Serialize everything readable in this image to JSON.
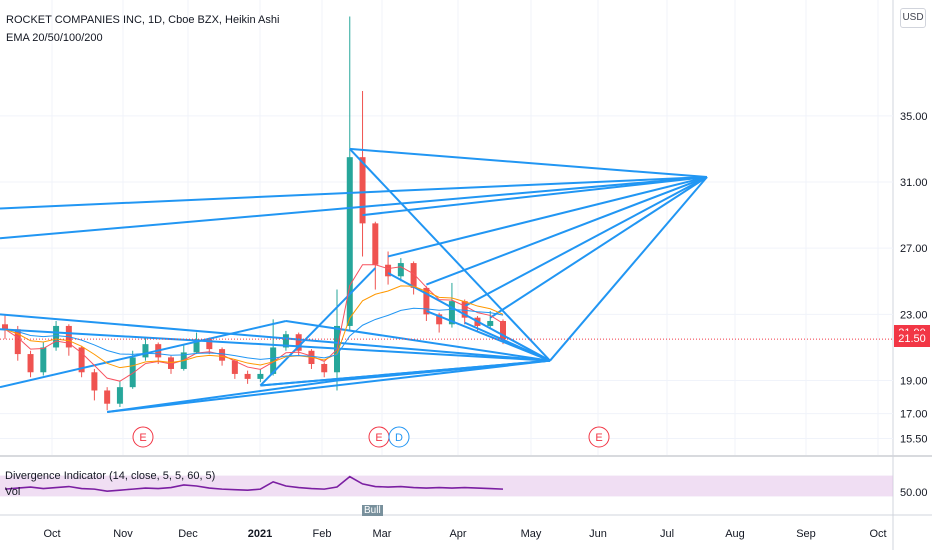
{
  "header": {
    "title": "ROCKET COMPANIES INC, 1D, Cboe BZX, Heikin Ashi",
    "indicator": "EMA 20/50/100/200"
  },
  "currency_button": "USD",
  "price_tags": [
    {
      "label": "21.90",
      "value": 21.9,
      "color": "#f23645"
    },
    {
      "label": "21.50",
      "value": 21.5,
      "color": "#f23645"
    }
  ],
  "oscillator": {
    "label": "Divergence Indicator (14, close, 5, 5, 60, 5)",
    "vol_label": "Vol",
    "bull_tag": "Bull",
    "band_color": "#e1bee7",
    "line_color": "#7b1fa2",
    "tick": "50.00"
  },
  "earnings_markers": [
    {
      "label": "E",
      "x_month": "Nov"
    },
    {
      "label": "E",
      "x_month": "Mar"
    },
    {
      "label": "D",
      "x_month": "Mar"
    },
    {
      "label": "E",
      "x_month": "Jun"
    }
  ],
  "chart_data": {
    "type": "candlestick",
    "title": "ROCKET COMPANIES INC, 1D, Cboe BZX, Heikin Ashi",
    "y_ticks": [
      "35.00",
      "31.00",
      "27.00",
      "23.00",
      "19.00",
      "17.00",
      "15.50"
    ],
    "y_tick_values": [
      35,
      31,
      27,
      23,
      19,
      17,
      15.5
    ],
    "x_ticks": [
      "Oct",
      "Nov",
      "Dec",
      "2021",
      "Feb",
      "Mar",
      "Apr",
      "May",
      "Jun",
      "Jul",
      "Aug",
      "Sep",
      "Oct"
    ],
    "colors": {
      "up": "#26a69a",
      "down": "#ef5350",
      "trend": "#2196f3",
      "ema": "#f7525f"
    },
    "series_price": [
      {
        "x": 0,
        "o": 22.4,
        "c": 22.1,
        "h": 23.0,
        "l": 21.5
      },
      {
        "x": 1,
        "o": 22.1,
        "c": 20.6,
        "h": 22.3,
        "l": 20.2
      },
      {
        "x": 2,
        "o": 20.6,
        "c": 19.5,
        "h": 20.8,
        "l": 19.2
      },
      {
        "x": 3,
        "o": 19.5,
        "c": 21.0,
        "h": 21.3,
        "l": 19.3
      },
      {
        "x": 4,
        "o": 21.0,
        "c": 22.3,
        "h": 22.6,
        "l": 20.8
      },
      {
        "x": 5,
        "o": 22.3,
        "c": 21.0,
        "h": 22.4,
        "l": 20.5
      },
      {
        "x": 6,
        "o": 21.0,
        "c": 19.5,
        "h": 21.1,
        "l": 19.2
      },
      {
        "x": 7,
        "o": 19.5,
        "c": 18.4,
        "h": 19.7,
        "l": 17.8
      },
      {
        "x": 8,
        "o": 18.4,
        "c": 17.6,
        "h": 18.6,
        "l": 17.2
      },
      {
        "x": 9,
        "o": 17.6,
        "c": 18.6,
        "h": 19.0,
        "l": 17.4
      },
      {
        "x": 10,
        "o": 18.6,
        "c": 20.4,
        "h": 20.8,
        "l": 18.5
      },
      {
        "x": 11,
        "o": 20.4,
        "c": 21.2,
        "h": 21.6,
        "l": 20.2
      },
      {
        "x": 12,
        "o": 21.2,
        "c": 20.4,
        "h": 21.3,
        "l": 20.0
      },
      {
        "x": 13,
        "o": 20.4,
        "c": 19.7,
        "h": 20.5,
        "l": 19.4
      },
      {
        "x": 14,
        "o": 19.7,
        "c": 20.7,
        "h": 21.2,
        "l": 19.6
      },
      {
        "x": 15,
        "o": 20.7,
        "c": 21.5,
        "h": 21.9,
        "l": 20.6
      },
      {
        "x": 16,
        "o": 21.5,
        "c": 20.9,
        "h": 21.6,
        "l": 20.6
      },
      {
        "x": 17,
        "o": 20.9,
        "c": 20.2,
        "h": 21.0,
        "l": 19.9
      },
      {
        "x": 18,
        "o": 20.2,
        "c": 19.4,
        "h": 20.3,
        "l": 19.1
      },
      {
        "x": 19,
        "o": 19.4,
        "c": 19.1,
        "h": 19.6,
        "l": 18.8
      },
      {
        "x": 20,
        "o": 19.1,
        "c": 19.4,
        "h": 19.7,
        "l": 18.9
      },
      {
        "x": 21,
        "o": 19.4,
        "c": 21.0,
        "h": 22.7,
        "l": 19.3
      },
      {
        "x": 22,
        "o": 21.0,
        "c": 21.8,
        "h": 22.0,
        "l": 20.8
      },
      {
        "x": 23,
        "o": 21.8,
        "c": 20.8,
        "h": 21.9,
        "l": 20.5
      },
      {
        "x": 24,
        "o": 20.8,
        "c": 20.0,
        "h": 20.9,
        "l": 19.7
      },
      {
        "x": 25,
        "o": 20.0,
        "c": 19.5,
        "h": 20.1,
        "l": 19.2
      },
      {
        "x": 26,
        "o": 19.5,
        "c": 22.3,
        "h": 24.5,
        "l": 18.4
      },
      {
        "x": 27,
        "o": 22.3,
        "c": 32.5,
        "h": 41.0,
        "l": 22.0
      },
      {
        "x": 28,
        "o": 32.5,
        "c": 28.5,
        "h": 36.5,
        "l": 26.5
      },
      {
        "x": 29,
        "o": 28.5,
        "c": 26.0,
        "h": 28.6,
        "l": 24.5
      },
      {
        "x": 30,
        "o": 26.0,
        "c": 25.3,
        "h": 26.8,
        "l": 24.8
      },
      {
        "x": 31,
        "o": 25.3,
        "c": 26.1,
        "h": 26.4,
        "l": 25.0
      },
      {
        "x": 32,
        "o": 26.1,
        "c": 24.6,
        "h": 26.2,
        "l": 24.2
      },
      {
        "x": 33,
        "o": 24.6,
        "c": 23.0,
        "h": 24.7,
        "l": 22.6
      },
      {
        "x": 34,
        "o": 23.0,
        "c": 22.4,
        "h": 23.1,
        "l": 21.9
      },
      {
        "x": 35,
        "o": 22.4,
        "c": 23.8,
        "h": 24.9,
        "l": 22.2
      },
      {
        "x": 36,
        "o": 23.8,
        "c": 22.8,
        "h": 23.9,
        "l": 22.4
      },
      {
        "x": 37,
        "o": 22.8,
        "c": 22.3,
        "h": 22.9,
        "l": 22.0
      },
      {
        "x": 38,
        "o": 22.3,
        "c": 22.6,
        "h": 23.2,
        "l": 22.1
      },
      {
        "x": 39,
        "o": 22.6,
        "c": 21.5,
        "h": 22.7,
        "l": 21.2
      }
    ],
    "series_oscillator": [
      44,
      46,
      48,
      45,
      47,
      49,
      45,
      44,
      40,
      42,
      44,
      46,
      45,
      47,
      52,
      50,
      46,
      44,
      43,
      42,
      44,
      58,
      50,
      47,
      45,
      44,
      48,
      68,
      54,
      49,
      48,
      49,
      47,
      46,
      47,
      46,
      47,
      46,
      45,
      44
    ],
    "oscillator_band": [
      30,
      70
    ],
    "ylim": [
      14.5,
      42.0
    ]
  }
}
